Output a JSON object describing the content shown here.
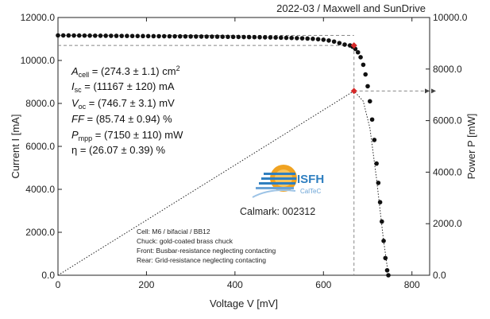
{
  "header": {
    "title": "2022-03 / Maxwell and SunDrive"
  },
  "chart_data": {
    "type": "scatter",
    "xlabel": "Voltage V [mV]",
    "ylabel_left": "Current I [mA]",
    "ylabel_right": "Power P [mW]",
    "xlim": [
      0,
      840
    ],
    "ylim_left": [
      0,
      12000
    ],
    "ylim_right": [
      0,
      10000
    ],
    "x_ticks": [
      "0",
      "200",
      "400",
      "600",
      "800"
    ],
    "y_ticks_left": [
      "0.0",
      "2000.0",
      "4000.0",
      "6000.0",
      "8000.0",
      "10000.0",
      "12000.0"
    ],
    "y_ticks_right": [
      "0.0",
      "2000.0",
      "4000.0",
      "6000.0",
      "8000.0",
      "10000.0"
    ],
    "grid": false,
    "series": [
      {
        "kind": "iv",
        "x": [
          0,
          12,
          24,
          36,
          48,
          60,
          72,
          84,
          96,
          108,
          120,
          132,
          144,
          156,
          168,
          180,
          192,
          204,
          216,
          228,
          240,
          252,
          264,
          276,
          288,
          300,
          312,
          324,
          336,
          348,
          360,
          372,
          384,
          396,
          408,
          420,
          432,
          444,
          456,
          468,
          480,
          492,
          504,
          516,
          528,
          540,
          552,
          564,
          576,
          588,
          600,
          612,
          624,
          636,
          648,
          660,
          666,
          672,
          678,
          684,
          690,
          695,
          700,
          705,
          710,
          715,
          720,
          724,
          728,
          732,
          736,
          740,
          744,
          746.7
        ],
        "y": [
          11167,
          11165,
          11163,
          11161,
          11159,
          11157,
          11155,
          11153,
          11151,
          11149,
          11147,
          11145,
          11143,
          11141,
          11139,
          11137,
          11135,
          11133,
          11131,
          11129,
          11127,
          11125,
          11123,
          11121,
          11119,
          11117,
          11115,
          11113,
          11111,
          11109,
          11107,
          11104,
          11101,
          11098,
          11095,
          11092,
          11089,
          11085,
          11081,
          11077,
          11072,
          11067,
          11061,
          11055,
          11048,
          11040,
          11031,
          11020,
          11007,
          10990,
          10965,
          10930,
          10880,
          10810,
          10740,
          10700,
          10640,
          10540,
          10380,
          10150,
          9800,
          9350,
          8800,
          8100,
          7250,
          6300,
          5200,
          4300,
          3400,
          2500,
          1600,
          800,
          230,
          0
        ]
      },
      {
        "kind": "pv",
        "x": [
          0,
          669
        ],
        "y": [
          0,
          7150
        ],
        "x2": [
          669,
          690,
          705,
          720,
          735,
          746.7
        ],
        "y2": [
          7150,
          6750,
          5710,
          3740,
          1470,
          0
        ]
      }
    ],
    "mpp": {
      "v": 669,
      "i": 10700,
      "p": 7150
    }
  },
  "parameters": {
    "a_cell": "(274.3 ± 1.1) cm",
    "a_cell_unit_sup": "2",
    "isc": "(11167 ± 120) mA",
    "voc": "(746.7 ± 3.1) mV",
    "ff": "(85.74 ± 0.94) %",
    "pmpp": "(7150 ± 110) mW",
    "eta": "(26.07 ± 0.39) %"
  },
  "notes": [
    "Cell: M6 / bifacial / BB12",
    "Chuck: gold-coated brass chuck",
    "Front: Busbar-resistance neglecting contacting",
    "Rear: Grid-resistance neglecting contacting"
  ],
  "logo": {
    "name": "ISFH",
    "sub": "CalTeC"
  },
  "calmark": "Calmark: 002312",
  "colors": {
    "marker": "#111111",
    "mpp": "#d62a2a",
    "axis": "#222222",
    "logo_blue": "#2f7fc0",
    "logo_orange": "#f0a322"
  }
}
